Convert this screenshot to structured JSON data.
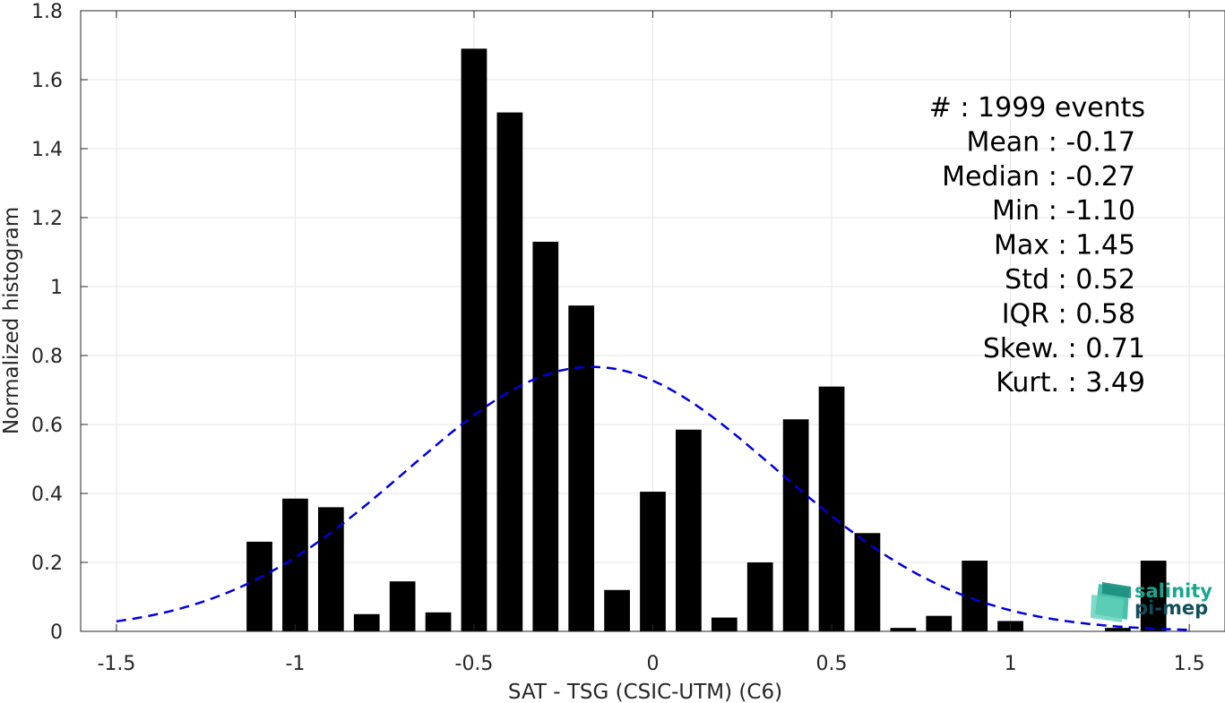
{
  "chart_data": {
    "type": "bar",
    "xlabel": "SAT - TSG (CSIC-UTM) (C6)",
    "ylabel": "Normalized histogram",
    "xlim": [
      -1.6,
      1.6
    ],
    "ylim": [
      0,
      1.8
    ],
    "xticks": [
      -1.5,
      -1,
      -0.5,
      0,
      0.5,
      1,
      1.5
    ],
    "xtick_labels": [
      "-1.5",
      "-1",
      "-0.5",
      "0",
      "0.5",
      "1",
      "1.5"
    ],
    "yticks": [
      0,
      0.2,
      0.4,
      0.6,
      0.8,
      1,
      1.2,
      1.4,
      1.6,
      1.8
    ],
    "ytick_labels": [
      "0",
      "0.2",
      "0.4",
      "0.6",
      "0.8",
      "1",
      "1.2",
      "1.4",
      "1.6",
      "1.8"
    ],
    "grid": true,
    "bar_color": "#000000",
    "bars": [
      {
        "x": -1.1,
        "value": 0.26
      },
      {
        "x": -1.0,
        "value": 0.385
      },
      {
        "x": -0.9,
        "value": 0.36
      },
      {
        "x": -0.8,
        "value": 0.05
      },
      {
        "x": -0.7,
        "value": 0.145
      },
      {
        "x": -0.6,
        "value": 0.055
      },
      {
        "x": -0.5,
        "value": 1.69
      },
      {
        "x": -0.4,
        "value": 1.505
      },
      {
        "x": -0.3,
        "value": 1.13
      },
      {
        "x": -0.2,
        "value": 0.945
      },
      {
        "x": -0.1,
        "value": 0.12
      },
      {
        "x": 0.0,
        "value": 0.405
      },
      {
        "x": 0.1,
        "value": 0.585
      },
      {
        "x": 0.2,
        "value": 0.04
      },
      {
        "x": 0.3,
        "value": 0.2
      },
      {
        "x": 0.4,
        "value": 0.615
      },
      {
        "x": 0.5,
        "value": 0.71
      },
      {
        "x": 0.6,
        "value": 0.285
      },
      {
        "x": 0.7,
        "value": 0.01
      },
      {
        "x": 0.8,
        "value": 0.045
      },
      {
        "x": 0.9,
        "value": 0.205
      },
      {
        "x": 1.0,
        "value": 0.03
      },
      {
        "x": 1.3,
        "value": 0.01
      },
      {
        "x": 1.4,
        "value": 0.205
      }
    ],
    "fit": {
      "type": "gaussian",
      "mean": -0.17,
      "std": 0.52,
      "color": "#0000dd",
      "style": "dashed",
      "x_range": [
        -1.5,
        1.5
      ]
    },
    "stats_labels": [
      "#  : 1999 events",
      "Mean : -0.17",
      "Median : -0.27",
      "Min : -1.10",
      "Max : 1.45",
      "Std : 0.52",
      "IQR : 0.58",
      "Skew. : 0.71",
      "Kurt. : 3.49"
    ]
  },
  "logo": {
    "line1": "salinity",
    "line2": "pi-mep",
    "color1": "#1aa58f",
    "color2": "#0f4f5a"
  }
}
